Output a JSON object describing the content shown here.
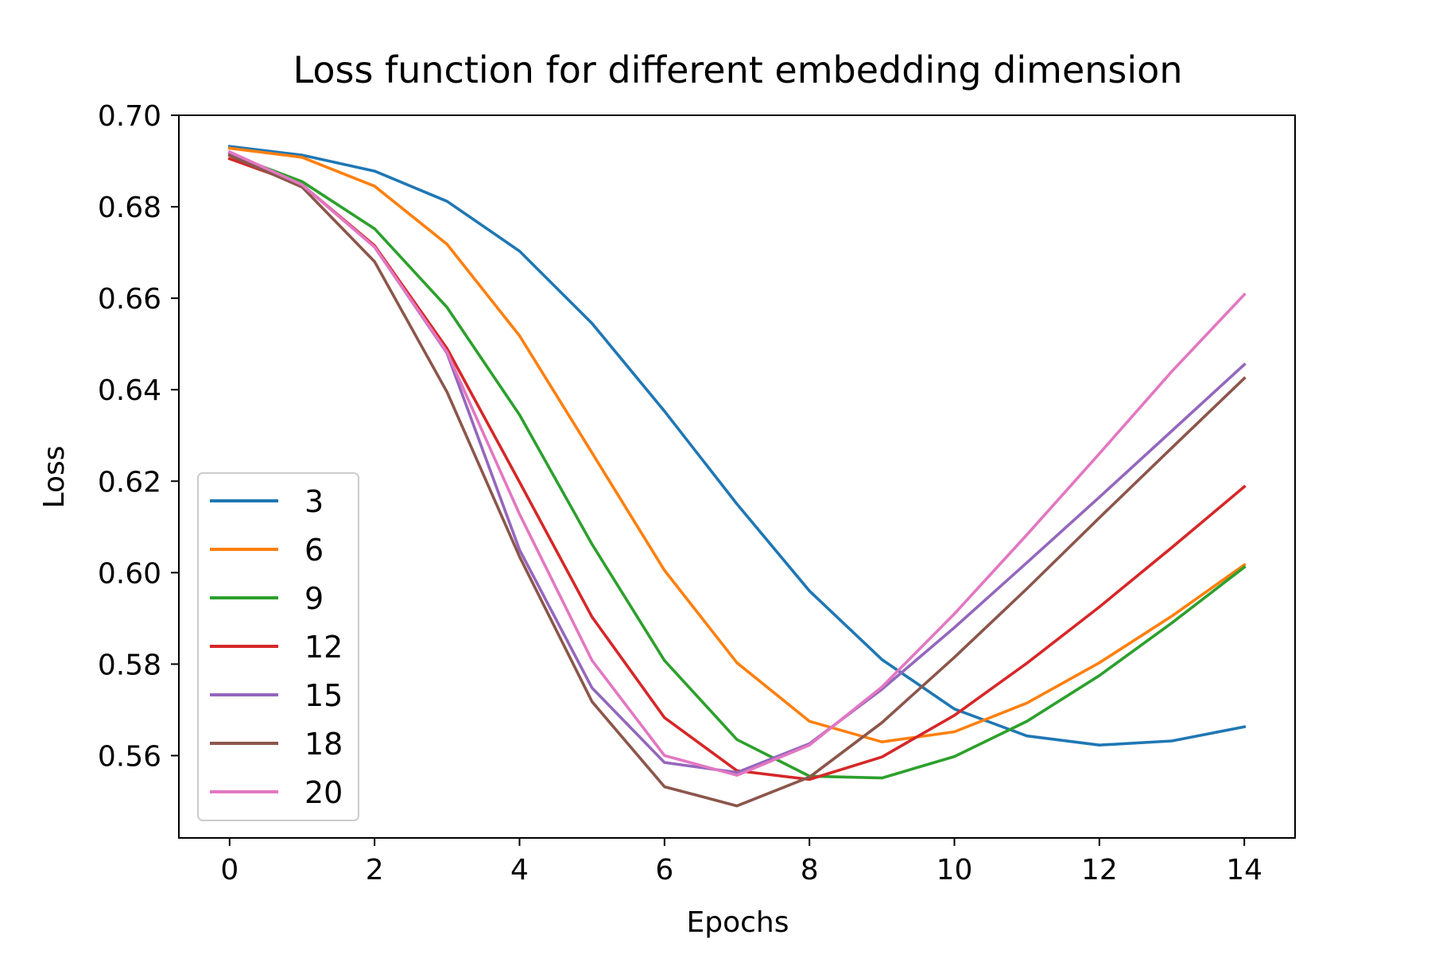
{
  "chart_data": {
    "type": "line",
    "title": "Loss function for different embedding dimension",
    "xlabel": "Epochs",
    "ylabel": "Loss",
    "xlim": [
      -0.7,
      14.7
    ],
    "ylim": [
      0.542,
      0.7
    ],
    "xticks": [
      0,
      2,
      4,
      6,
      8,
      10,
      12,
      14
    ],
    "xtick_labels": [
      "0",
      "2",
      "4",
      "6",
      "8",
      "10",
      "12",
      "14"
    ],
    "yticks": [
      0.56,
      0.58,
      0.6,
      0.62,
      0.64,
      0.66,
      0.68,
      0.7
    ],
    "ytick_labels": [
      "0.56",
      "0.58",
      "0.60",
      "0.62",
      "0.64",
      "0.66",
      "0.68",
      "0.70"
    ],
    "grid": false,
    "legend_position": "lower-left",
    "x": [
      0,
      1,
      2,
      3,
      4,
      5,
      6,
      7,
      8,
      9,
      10,
      11,
      12,
      13,
      14
    ],
    "series": [
      {
        "name": "3",
        "color": "#1f77b4",
        "values": [
          0.6932,
          0.6913,
          0.6878,
          0.6812,
          0.6703,
          0.6545,
          0.6353,
          0.615,
          0.596,
          0.581,
          0.5702,
          0.5643,
          0.5623,
          0.5632,
          0.5663
        ]
      },
      {
        "name": "6",
        "color": "#ff7f0e",
        "values": [
          0.6928,
          0.6908,
          0.6845,
          0.6718,
          0.6518,
          0.6262,
          0.6005,
          0.5803,
          0.5675,
          0.563,
          0.5652,
          0.5715,
          0.5803,
          0.5905,
          0.6017
        ]
      },
      {
        "name": "9",
        "color": "#2ca02c",
        "values": [
          0.6915,
          0.6855,
          0.6752,
          0.658,
          0.6345,
          0.6062,
          0.5808,
          0.5635,
          0.5555,
          0.5551,
          0.5598,
          0.5675,
          0.5775,
          0.589,
          0.6012
        ]
      },
      {
        "name": "12",
        "color": "#d62728",
        "values": [
          0.6905,
          0.6848,
          0.6715,
          0.649,
          0.6198,
          0.5903,
          0.5683,
          0.5567,
          0.5548,
          0.5597,
          0.5688,
          0.5802,
          0.5925,
          0.6055,
          0.6188
        ]
      },
      {
        "name": "15",
        "color": "#9467bd",
        "values": [
          0.6918,
          0.6848,
          0.6712,
          0.648,
          0.605,
          0.5748,
          0.5585,
          0.5563,
          0.5626,
          0.5745,
          0.588,
          0.6022,
          0.6165,
          0.631,
          0.6455
        ]
      },
      {
        "name": "18",
        "color": "#8c564b",
        "values": [
          0.6912,
          0.6843,
          0.668,
          0.6395,
          0.6035,
          0.5718,
          0.5532,
          0.549,
          0.5553,
          0.5672,
          0.5815,
          0.5965,
          0.612,
          0.6273,
          0.6425
        ]
      },
      {
        "name": "20",
        "color": "#e377c2",
        "values": [
          0.692,
          0.6848,
          0.6712,
          0.6482,
          0.6128,
          0.5808,
          0.56,
          0.5557,
          0.5623,
          0.575,
          0.591,
          0.6083,
          0.626,
          0.644,
          0.6608
        ]
      }
    ]
  }
}
